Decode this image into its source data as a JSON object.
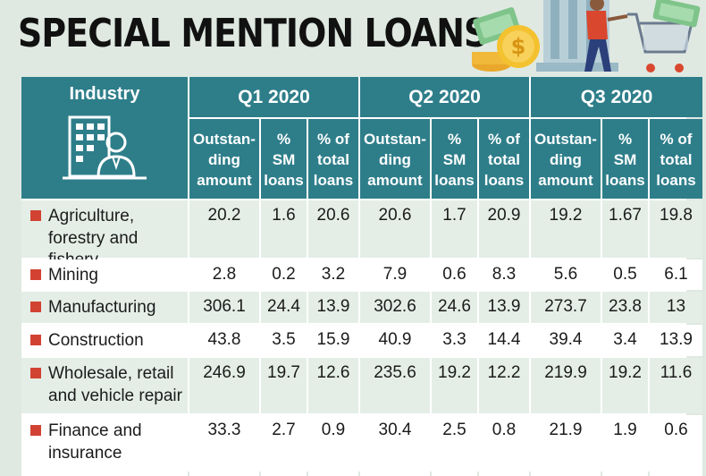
{
  "title": "SPECIAL MENTION LOANS",
  "colors": {
    "header_bg": "#2e7e8a",
    "bullet": "#d24232",
    "page_bg": "#dfe9e2"
  },
  "header": {
    "industry": "Industry",
    "quarters": [
      "Q1 2020",
      "Q2 2020",
      "Q3 2020"
    ],
    "subcolumns": [
      "Outstan-\nding\namount",
      "%\nSM\nloans",
      "% of\ntotal\nloans"
    ]
  },
  "chart_data": {
    "type": "table",
    "title": "SPECIAL MENTION LOANS",
    "columns": [
      "Industry",
      "Q1 2020 Outstanding amount",
      "Q1 2020 % SM loans",
      "Q1 2020 % of total loans",
      "Q2 2020 Outstanding amount",
      "Q2 2020 % SM loans",
      "Q2 2020 % of total loans",
      "Q3 2020 Outstanding amount",
      "Q3 2020 % SM loans",
      "Q3 2020 % of total loans"
    ],
    "rows": [
      {
        "name": "Agriculture,\nforestry and fishery",
        "values": [
          "20.2",
          "1.6",
          "20.6",
          "20.6",
          "1.7",
          "20.9",
          "19.2",
          "1.67",
          "19.8"
        ]
      },
      {
        "name": "Mining",
        "values": [
          "2.8",
          "0.2",
          "3.2",
          "7.9",
          "0.6",
          "8.3",
          "5.6",
          "0.5",
          "6.1"
        ]
      },
      {
        "name": "Manufacturing",
        "values": [
          "306.1",
          "24.4",
          "13.9",
          "302.6",
          "24.6",
          "13.9",
          "273.7",
          "23.8",
          "13"
        ]
      },
      {
        "name": "Construction",
        "values": [
          "43.8",
          "3.5",
          "15.9",
          "40.9",
          "3.3",
          "14.4",
          "39.4",
          "3.4",
          "13.9"
        ]
      },
      {
        "name": "Wholesale, retail\nand vehicle repair",
        "values": [
          "246.9",
          "19.7",
          "12.6",
          "235.6",
          "19.2",
          "12.2",
          "219.9",
          "19.2",
          "11.6"
        ]
      },
      {
        "name": "Finance and\ninsurance",
        "values": [
          "33.3",
          "2.7",
          "0.9",
          "30.4",
          "2.5",
          "0.8",
          "21.9",
          "1.9",
          "0.6"
        ]
      }
    ]
  }
}
